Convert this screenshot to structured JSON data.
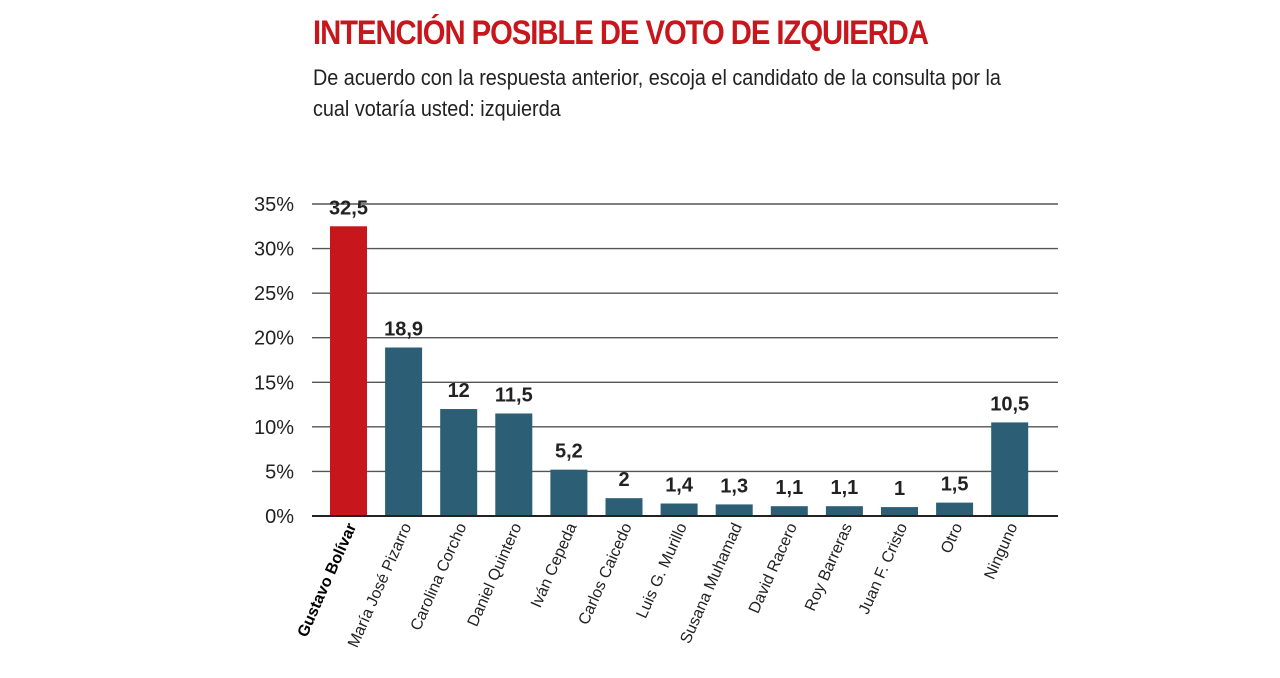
{
  "header": {
    "title": "INTENCIÓN POSIBLE DE VOTO DE IZQUIERDA",
    "subtitle": "De acuerdo con la respuesta anterior, escoja el candidato de la consulta por la cual votaría usted: izquierda"
  },
  "chart_data": {
    "type": "bar",
    "categories": [
      "Gustavo Bolívar",
      "María José Pizarro",
      "Carolina Corcho",
      "Daniel Quintero",
      "Iván Cepeda",
      "Carlos Caicedo",
      "Luis G. Murillo",
      "Susana Muhamad",
      "David Racero",
      "Roy Barreras",
      "Juan F. Cristo",
      "Otro",
      "Ninguno"
    ],
    "values": [
      32.5,
      18.9,
      12,
      11.5,
      5.2,
      2,
      1.4,
      1.3,
      1.1,
      1.1,
      1,
      1.5,
      10.5
    ],
    "value_labels": [
      "32,5",
      "18,9",
      "12",
      "11,5",
      "5,2",
      "2",
      "1,4",
      "1,3",
      "1,1",
      "1,1",
      "1",
      "1,5",
      "10,5"
    ],
    "y_ticks": [
      0,
      5,
      10,
      15,
      20,
      25,
      30,
      35
    ],
    "y_tick_labels": [
      "0%",
      "5%",
      "10%",
      "15%",
      "20%",
      "25%",
      "30%",
      "35%"
    ],
    "ylim": [
      0,
      35
    ],
    "grid": true,
    "highlight_index": 0,
    "colors": {
      "highlight": "#c8161d",
      "bar": "#2c5e76",
      "grid": "#555555",
      "title": "#c8161d"
    }
  }
}
